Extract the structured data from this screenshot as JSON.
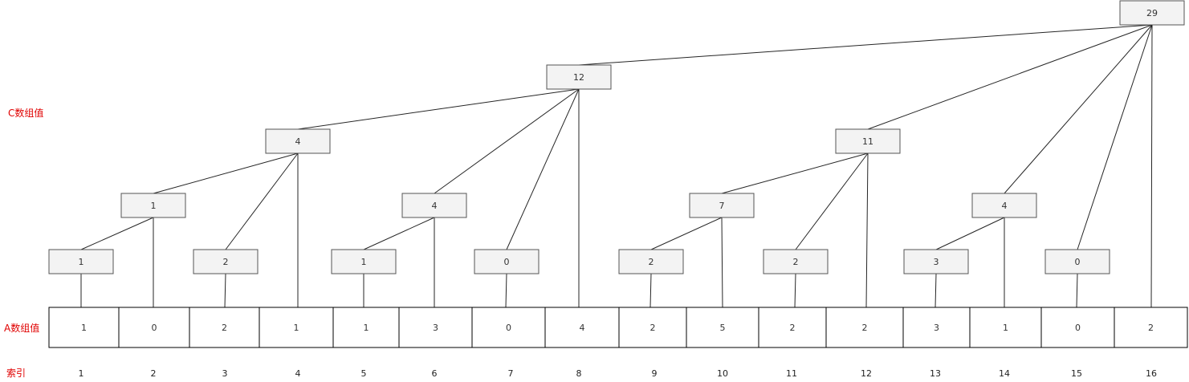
{
  "labels": {
    "c_array": "C数组值",
    "a_array": "A数组值",
    "index": "索引"
  },
  "colors": {
    "label": "#e00000",
    "node_fill": "#f3f3f3",
    "node_stroke": "#555555",
    "line": "#000000"
  },
  "a_values": [
    "1",
    "0",
    "2",
    "1",
    "1",
    "3",
    "0",
    "4",
    "2",
    "5",
    "2",
    "2",
    "3",
    "1",
    "0",
    "2"
  ],
  "indices": [
    "1",
    "2",
    "3",
    "4",
    "5",
    "6",
    "7",
    "8",
    "9",
    "10",
    "11",
    "12",
    "13",
    "14",
    "15",
    "16"
  ],
  "c_nodes": [
    {
      "id": "c1",
      "value": "1"
    },
    {
      "id": "c2",
      "value": "1"
    },
    {
      "id": "c3",
      "value": "2"
    },
    {
      "id": "c4",
      "value": "4"
    },
    {
      "id": "c5",
      "value": "1"
    },
    {
      "id": "c6",
      "value": "4"
    },
    {
      "id": "c7",
      "value": "0"
    },
    {
      "id": "c8",
      "value": "12"
    },
    {
      "id": "c9",
      "value": "2"
    },
    {
      "id": "c10",
      "value": "7"
    },
    {
      "id": "c11",
      "value": "2"
    },
    {
      "id": "c12",
      "value": "11"
    },
    {
      "id": "c13",
      "value": "3"
    },
    {
      "id": "c14",
      "value": "4"
    },
    {
      "id": "c15",
      "value": "0"
    },
    {
      "id": "c16",
      "value": "29"
    }
  ]
}
